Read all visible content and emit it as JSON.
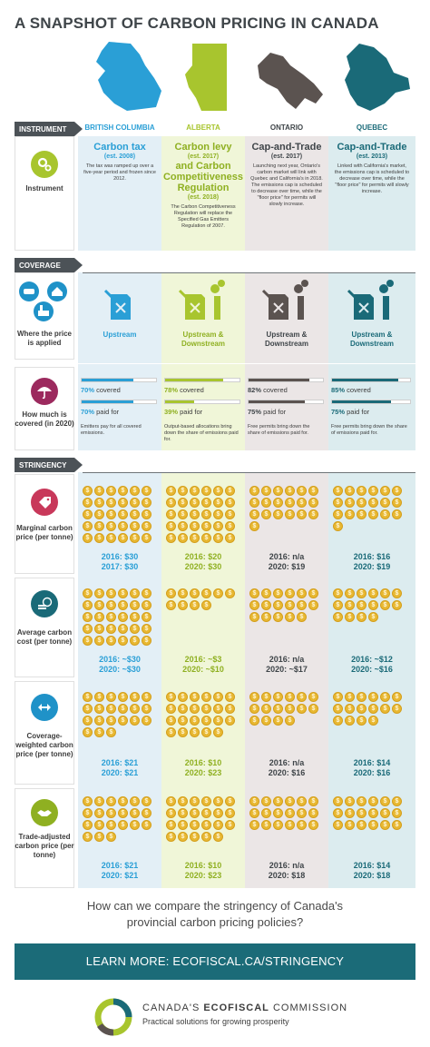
{
  "title": "A SNAPSHOT OF CARBON PRICING IN CANADA",
  "colors": {
    "bc": "#2a9fd6",
    "ab": "#a8c52e",
    "on": "#5b5350",
    "qc": "#1a6a78",
    "gold": "#e8b832"
  },
  "provinces": [
    "BRITISH COLUMBIA",
    "ALBERTA",
    "ONTARIO",
    "QUEBEC"
  ],
  "sections": {
    "instrument": "INSTRUMENT",
    "coverage": "COVERAGE",
    "stringency": "STRINGENCY"
  },
  "instrument": {
    "label": "Instrument",
    "items": [
      {
        "title": "Carbon tax",
        "est": "(est. 2008)",
        "desc": "The tax was ramped up over a five-year period and frozen since 2012."
      },
      {
        "title": "Carbon levy",
        "est": "(est. 2017)",
        "title2": "and Carbon Competitiveness Regulation",
        "est2": "(est. 2018)",
        "desc": "The Carbon Competitiveness Regulation will replace the Specified Gas Emitters Regulation of 2007."
      },
      {
        "title": "Cap-and-Trade",
        "est": "(est. 2017)",
        "desc": "Launching next year, Ontario's carbon market will link with Quebec and California's in 2018. The emissions cap is scheduled to decrease over time, while the \"floor price\" for permits will slowly increase."
      },
      {
        "title": "Cap-and-Trade",
        "est": "(est. 2013)",
        "desc": "Linked with California's market, the emissions cap is scheduled to decrease over time, while the \"floor price\" for permits will slowly increase."
      }
    ]
  },
  "where": {
    "label": "Where the price is applied",
    "items": [
      "Upstream",
      "Upstream & Downstream",
      "Upstream & Downstream",
      "Upstream & Downstream"
    ]
  },
  "howmuch": {
    "label": "How much is covered (in 2020)",
    "items": [
      {
        "covered": 70,
        "covered_text": "70%",
        "covered_suffix": "covered",
        "paid": 70,
        "paid_text": "70%",
        "paid_suffix": "paid for",
        "note": "Emitters pay for all covered emissions."
      },
      {
        "covered": 78,
        "covered_text": "78%",
        "covered_suffix": "covered",
        "paid": 39,
        "paid_text": "39%",
        "paid_suffix": "paid for",
        "note": "Output-based allocations bring down the share of emissions paid for."
      },
      {
        "covered": 82,
        "covered_text": "82%",
        "covered_suffix": "covered",
        "paid": 75,
        "paid_text": "75%",
        "paid_suffix": "paid for",
        "note": "Free permits bring down the share of emissions paid for."
      },
      {
        "covered": 85,
        "covered_text": "85%",
        "covered_suffix": "covered",
        "paid": 75,
        "paid_text": "75%",
        "paid_suffix": "paid for",
        "note": "Free permits bring down the share of emissions paid for."
      }
    ]
  },
  "stringency": [
    {
      "label": "Marginal carbon price (per tonne)",
      "coins": [
        30,
        30,
        19,
        19
      ],
      "stats": [
        [
          "2016: $30",
          "2017: $30"
        ],
        [
          "2016: $20",
          "2020: $30"
        ],
        [
          "2016: n/a",
          "2020: $19"
        ],
        [
          "2016: $16",
          "2020: $19"
        ]
      ]
    },
    {
      "label": "Average carbon cost (per tonne)",
      "coins": [
        30,
        10,
        17,
        16
      ],
      "stats": [
        [
          "2016: ~$30",
          "2020: ~$30"
        ],
        [
          "2016: ~$3",
          "2020: ~$10"
        ],
        [
          "2016: n/a",
          "2020: ~$17"
        ],
        [
          "2016: ~$12",
          "2020: ~$16"
        ]
      ]
    },
    {
      "label": "Coverage-weighted carbon price (per tonne)",
      "coins": [
        21,
        23,
        16,
        16
      ],
      "stats": [
        [
          "2016: $21",
          "2020: $21"
        ],
        [
          "2016: $10",
          "2020: $23"
        ],
        [
          "2016: n/a",
          "2020: $16"
        ],
        [
          "2016: $14",
          "2020: $16"
        ]
      ]
    },
    {
      "label": "Trade-adjusted carbon price (per tonne)",
      "coins": [
        21,
        23,
        18,
        18
      ],
      "stats": [
        [
          "2016: $21",
          "2020: $21"
        ],
        [
          "2016: $10",
          "2020: $23"
        ],
        [
          "2016: n/a",
          "2020: $18"
        ],
        [
          "2016: $14",
          "2020: $18"
        ]
      ]
    }
  ],
  "coin_symbol": "$",
  "question": "How can we compare the stringency of Canada's provincial carbon pricing policies?",
  "learn_more": "LEARN MORE: ECOFISCAL.CA/STRINGENCY",
  "footer": {
    "name_pre": "CANADA'S ",
    "name_bold": "ECOFISCAL",
    "name_post": " COMMISSION",
    "tagline": "Practical solutions for growing prosperity"
  }
}
